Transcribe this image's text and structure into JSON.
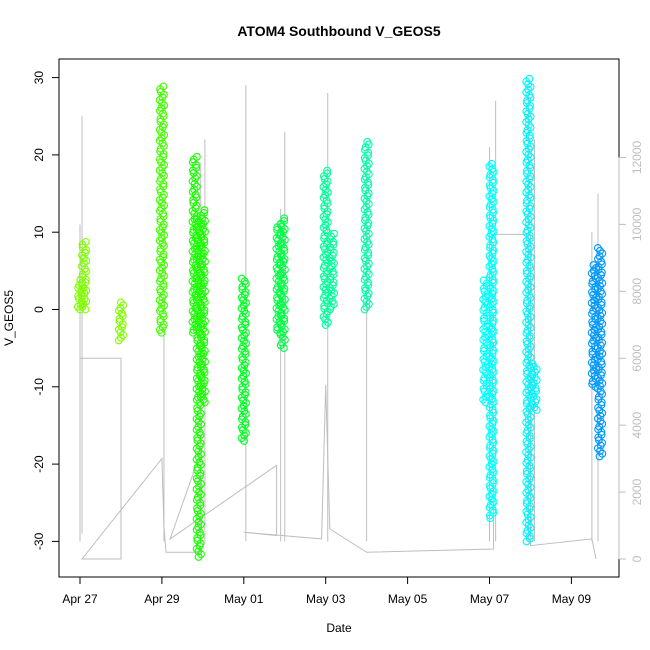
{
  "chart_data": {
    "type": "scatter",
    "title": "ATOM4 Southbound V_GEOS5",
    "xlabel": "Date",
    "ylabel": "V_GEOS5",
    "x_ticks": [
      "Apr 27",
      "Apr 29",
      "May 01",
      "May 03",
      "May 05",
      "May 07",
      "May 09"
    ],
    "x_range_days": [
      -0.6,
      12.8
    ],
    "y_ticks": [
      -30,
      -20,
      -10,
      0,
      10,
      20,
      30
    ],
    "ylim": [
      -33,
      30
    ],
    "y2_ticks": [
      0,
      2000,
      4000,
      6000,
      8000,
      10000,
      12000
    ],
    "y2lim": [
      -150,
      12500
    ],
    "grid": false,
    "colors": {
      "altitude_line": "#bebebe",
      "axis": "#000000",
      "axis_right": "#bebebe"
    },
    "series": [
      {
        "x_day": 0.0,
        "vmin": 0,
        "vmax": 4,
        "color": "#80ff00"
      },
      {
        "x_day": 0.1,
        "vmin": 0,
        "vmax": 9,
        "color": "#80ff00"
      },
      {
        "x_day": 1.0,
        "vmin": -4,
        "vmax": 1,
        "color": "#80ff00"
      },
      {
        "x_day": 2.0,
        "vmin": -3,
        "vmax": 29,
        "color": "#44ff00"
      },
      {
        "x_day": 2.8,
        "vmin": -3,
        "vmax": 20,
        "color": "#1aff00"
      },
      {
        "x_day": 2.9,
        "vmin": -32,
        "vmax": 12,
        "color": "#1aff00"
      },
      {
        "x_day": 3.0,
        "vmin": -12,
        "vmax": 13,
        "color": "#1aff00"
      },
      {
        "x_day": 4.0,
        "vmin": -17,
        "vmax": 4,
        "color": "#00ff22"
      },
      {
        "x_day": 4.85,
        "vmin": -3,
        "vmax": 11,
        "color": "#00ff44"
      },
      {
        "x_day": 4.95,
        "vmin": -5,
        "vmax": 12,
        "color": "#00ff44"
      },
      {
        "x_day": 6.0,
        "vmin": -2,
        "vmax": 18,
        "color": "#00ff99"
      },
      {
        "x_day": 6.15,
        "vmin": 0,
        "vmax": 10,
        "color": "#00ff99"
      },
      {
        "x_day": 7.0,
        "vmin": 0,
        "vmax": 22,
        "color": "#00ffaa"
      },
      {
        "x_day": 9.9,
        "vmin": -12,
        "vmax": 4,
        "color": "#00ffff"
      },
      {
        "x_day": 10.05,
        "vmin": -27,
        "vmax": 19,
        "color": "#00ffff"
      },
      {
        "x_day": 10.95,
        "vmin": -30,
        "vmax": 30,
        "color": "#00f5ff"
      },
      {
        "x_day": 11.1,
        "vmin": -13,
        "vmax": -7,
        "color": "#00f5ff"
      },
      {
        "x_day": 12.55,
        "vmin": -10,
        "vmax": 6,
        "color": "#0099ff"
      },
      {
        "x_day": 12.7,
        "vmin": -19,
        "vmax": 8,
        "color": "#0099ff"
      }
    ],
    "altitude": [
      [
        0.0,
        6000
      ],
      [
        1.0,
        6000
      ],
      [
        1.0,
        0
      ],
      [
        0.05,
        0
      ],
      [
        2.0,
        3000
      ],
      [
        2.05,
        1000
      ],
      [
        2.1,
        200
      ],
      [
        2.95,
        200
      ],
      [
        2.95,
        3200
      ],
      [
        2.2,
        600
      ],
      [
        4.8,
        2800
      ],
      [
        4.8,
        700
      ],
      [
        4.0,
        800
      ],
      [
        5.9,
        600
      ],
      [
        6.0,
        5200
      ],
      [
        6.1,
        900
      ],
      [
        7.0,
        200
      ],
      [
        10.1,
        300
      ],
      [
        10.05,
        9700
      ],
      [
        11.0,
        9700
      ],
      [
        11.0,
        400
      ],
      [
        12.5,
        600
      ],
      [
        12.6,
        0
      ]
    ],
    "spikes": [
      [
        0.0,
        -30,
        11
      ],
      [
        0.05,
        -29,
        25
      ],
      [
        2.05,
        -30,
        11
      ],
      [
        2.95,
        -30,
        19
      ],
      [
        3.05,
        -30,
        22
      ],
      [
        4.05,
        -30,
        29
      ],
      [
        4.9,
        -30,
        13
      ],
      [
        5.0,
        -30,
        23
      ],
      [
        6.05,
        -30,
        28
      ],
      [
        7.0,
        -30,
        20
      ],
      [
        10.0,
        -30,
        21
      ],
      [
        10.15,
        -30,
        27
      ],
      [
        10.95,
        -30,
        28
      ],
      [
        11.1,
        -30,
        22
      ],
      [
        12.5,
        -30,
        10
      ],
      [
        12.65,
        -30,
        15
      ]
    ]
  }
}
